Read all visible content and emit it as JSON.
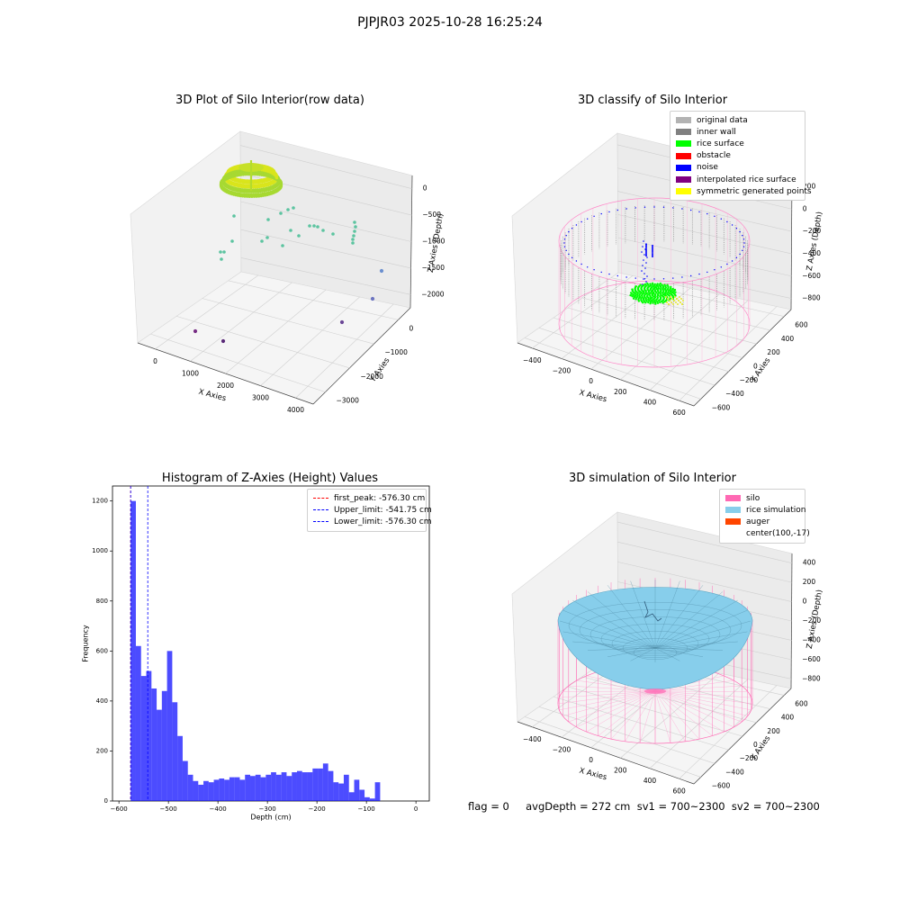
{
  "suptitle": "PJPJR03 2025-10-28 16:25:24",
  "panel1": {
    "title": "3D Plot of Silo Interior(row data)",
    "xlabel": "X Axies",
    "ylabel": "Y Axies",
    "zlabel": "Z Axies (Depth)",
    "xticks": [
      "0",
      "1000",
      "2000",
      "3000",
      "4000"
    ],
    "yticks": [
      "0",
      "−1000",
      "−2000",
      "−3000"
    ],
    "zticks": [
      "0",
      "−500",
      "−1000",
      "−1500",
      "−2000"
    ]
  },
  "panel2": {
    "title": "3D classify of Silo Interior",
    "xlabel": "X Axies",
    "ylabel": "Y Axies",
    "zlabel": "Z Axies (Depth)",
    "xticks": [
      "−400",
      "−200",
      "0",
      "200",
      "400",
      "600"
    ],
    "yticks": [
      "600",
      "400",
      "200",
      "0",
      "−200",
      "−400",
      "−600"
    ],
    "zticks": [
      "200",
      "0",
      "−200",
      "−400",
      "−600",
      "−800"
    ],
    "legend": [
      {
        "label": "original data",
        "color": "#b3b3b3"
      },
      {
        "label": "inner wall",
        "color": "#808080"
      },
      {
        "label": "rice surface",
        "color": "#00ff00"
      },
      {
        "label": "obstacle",
        "color": "#ff0000"
      },
      {
        "label": "noise",
        "color": "#0000ff"
      },
      {
        "label": "interpolated rice surface",
        "color": "#800080"
      },
      {
        "label": "symmetric generated points",
        "color": "#ffff00"
      }
    ]
  },
  "panel3": {
    "title": "Histogram of Z-Axies (Height) Values",
    "xlabel": "Depth (cm)",
    "ylabel": "Frequency",
    "legend": [
      {
        "label": "first_peak: -576.30 cm",
        "color": "#ff0000"
      },
      {
        "label": "Upper_limit: -541.75 cm",
        "color": "#0000ff"
      },
      {
        "label": "Lower_limit: -576.30 cm",
        "color": "#0000ff"
      }
    ]
  },
  "panel4": {
    "title": "3D simulation of Silo Interior",
    "xlabel": "X Axies",
    "ylabel": "Y Axies",
    "zlabel": "Z Axies (Depth)",
    "xticks": [
      "−400",
      "−200",
      "0",
      "200",
      "400",
      "600"
    ],
    "yticks": [
      "600",
      "400",
      "200",
      "0",
      "−200",
      "−400",
      "−600"
    ],
    "zticks": [
      "400",
      "200",
      "0",
      "−200",
      "−400",
      "−600",
      "−800"
    ],
    "legend": [
      {
        "label": "silo",
        "color": "#ff69b4"
      },
      {
        "label": "rice simulation",
        "color": "#87ceeb"
      },
      {
        "label": "auger",
        "color": "#ff4500"
      },
      {
        "label": "center(100,-17)",
        "color": "#ffffff"
      }
    ]
  },
  "footer": "flag = 0     avgDepth = 272 cm  sv1 = 700~2300  sv2 = 700~2300",
  "chart_data": [
    {
      "type": "scatter",
      "title": "3D Plot of Silo Interior(row data)",
      "xlabel": "X Axies",
      "ylabel": "Y Axies",
      "zlabel": "Z Axies (Depth)",
      "xlim": [
        -600,
        4500
      ],
      "ylim": [
        -3500,
        500
      ],
      "zlim": [
        -2400,
        100
      ]
    },
    {
      "type": "scatter",
      "title": "3D classify of Silo Interior",
      "xlabel": "X Axies",
      "ylabel": "Y Axies",
      "zlabel": "Z Axies (Depth)",
      "series": [
        {
          "name": "original data"
        },
        {
          "name": "inner wall"
        },
        {
          "name": "rice surface"
        },
        {
          "name": "obstacle"
        },
        {
          "name": "noise"
        },
        {
          "name": "interpolated rice surface"
        },
        {
          "name": "symmetric generated points"
        }
      ]
    },
    {
      "type": "bar",
      "title": "Histogram of Z-Axies (Height) Values",
      "xlabel": "Depth (cm)",
      "ylabel": "Frequency",
      "xlim": [
        -613,
        27
      ],
      "ylim": [
        0,
        1260
      ],
      "xticks": [
        -600,
        -500,
        -400,
        -300,
        -200,
        -100,
        0
      ],
      "yticks": [
        0,
        200,
        400,
        600,
        800,
        1000,
        1200
      ],
      "bin_start": -576.3,
      "bin_width": 10.5,
      "values": [
        1200,
        620,
        500,
        520,
        450,
        365,
        440,
        600,
        395,
        260,
        160,
        105,
        80,
        65,
        80,
        75,
        85,
        90,
        85,
        95,
        95,
        85,
        105,
        100,
        105,
        95,
        105,
        115,
        105,
        115,
        100,
        115,
        120,
        115,
        115,
        130,
        130,
        150,
        120,
        75,
        70,
        105,
        35,
        85,
        45,
        15,
        10,
        75
      ],
      "lines": [
        {
          "name": "first_peak: -576.30 cm",
          "x": -576.3,
          "color": "#ff0000"
        },
        {
          "name": "Upper_limit: -541.75 cm",
          "x": -541.75,
          "color": "#0000ff"
        },
        {
          "name": "Lower_limit: -576.30 cm",
          "x": -576.3,
          "color": "#0000ff"
        }
      ],
      "color": "#0000ff"
    },
    {
      "type": "surface",
      "title": "3D simulation of Silo Interior",
      "xlabel": "X Axies",
      "ylabel": "Y Axies",
      "zlabel": "Z Axies (Depth)",
      "series": [
        {
          "name": "silo"
        },
        {
          "name": "rice simulation"
        },
        {
          "name": "auger"
        },
        {
          "name": "center(100,-17)"
        }
      ]
    }
  ]
}
